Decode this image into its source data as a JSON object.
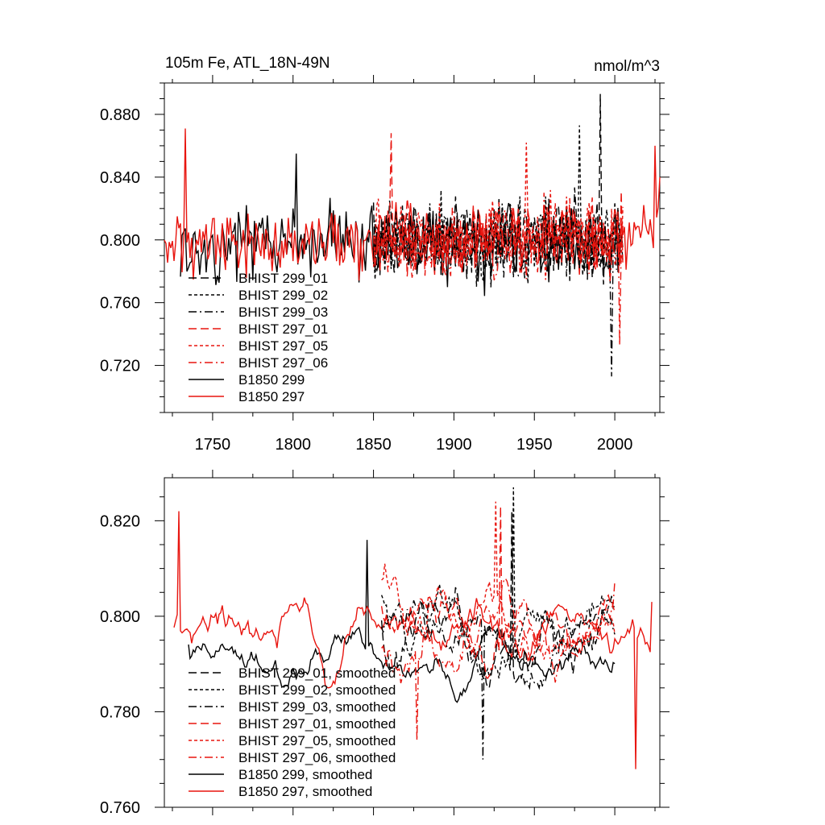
{
  "chart_data": [
    {
      "type": "line",
      "title": "105m Fe, ATL_18N-49N",
      "units": "nmol/m^3",
      "xlim": [
        1720,
        2028
      ],
      "ylim": [
        0.69,
        0.9
      ],
      "x_ticks": [
        "1750",
        "1800",
        "1850",
        "1900",
        "1950",
        "2000"
      ],
      "y_ticks": [
        "0.720",
        "0.760",
        "0.800",
        "0.840",
        "0.880"
      ],
      "grid": false,
      "legend_position": "lower-left",
      "series": [
        {
          "name": "BHIST 299_01",
          "color": "#000000",
          "dash": "long-dash",
          "x_range": [
            1850,
            2005
          ],
          "mean": 0.8,
          "amplitude": 0.04,
          "seed": 11,
          "peak": [
            1991,
            0.893
          ]
        },
        {
          "name": "BHIST 299_02",
          "color": "#000000",
          "dash": "short-dash",
          "x_range": [
            1850,
            2005
          ],
          "mean": 0.802,
          "amplitude": 0.038,
          "seed": 12,
          "peak": [
            1978,
            0.873
          ]
        },
        {
          "name": "BHIST 299_03",
          "color": "#000000",
          "dash": "dash-dot",
          "x_range": [
            1850,
            2005
          ],
          "mean": 0.798,
          "amplitude": 0.038,
          "seed": 13,
          "peak": [
            1998,
            0.713
          ]
        },
        {
          "name": "BHIST 297_01",
          "color": "#e8150f",
          "dash": "long-dash",
          "x_range": [
            1850,
            2005
          ],
          "mean": 0.8,
          "amplitude": 0.035,
          "seed": 21,
          "peak": [
            1861,
            0.868
          ]
        },
        {
          "name": "BHIST 297_05",
          "color": "#e8150f",
          "dash": "short-dash",
          "x_range": [
            1850,
            2005
          ],
          "mean": 0.803,
          "amplitude": 0.035,
          "seed": 22,
          "peak": [
            1945,
            0.862
          ]
        },
        {
          "name": "BHIST 297_06",
          "color": "#e8150f",
          "dash": "dash-dot",
          "x_range": [
            1850,
            2005
          ],
          "mean": 0.799,
          "amplitude": 0.035,
          "seed": 23,
          "peak": [
            2003,
            0.733
          ]
        },
        {
          "name": "B1850 299",
          "color": "#000000",
          "dash": "solid",
          "x_range": [
            1730,
            2005
          ],
          "mean": 0.797,
          "amplitude": 0.035,
          "seed": 31,
          "peak": [
            1802,
            0.855
          ]
        },
        {
          "name": "B1850 297",
          "color": "#e8150f",
          "dash": "solid",
          "x_range": [
            1720,
            2028
          ],
          "mean": 0.8,
          "amplitude": 0.033,
          "seed": 32,
          "peak": [
            1733,
            0.871
          ],
          "end_values": [
            [
              2020,
              0.806
            ],
            [
              2025,
              0.86
            ],
            [
              2028,
              0.84
            ]
          ]
        }
      ]
    },
    {
      "type": "line",
      "title": "",
      "xlim": [
        1720,
        2028
      ],
      "ylim": [
        0.76,
        0.829
      ],
      "x_ticks": [],
      "y_ticks": [
        "0.760",
        "0.780",
        "0.800",
        "0.820"
      ],
      "grid": false,
      "legend_position": "lower-left",
      "series": [
        {
          "name": "BHIST 299_01, smoothed",
          "color": "#000000",
          "dash": "long-dash",
          "x_range": [
            1855,
            2000
          ],
          "mean": 0.797,
          "amplitude": 0.012,
          "seed": 41,
          "peak": [
            1936,
            0.822
          ]
        },
        {
          "name": "BHIST 299_02, smoothed",
          "color": "#000000",
          "dash": "short-dash",
          "x_range": [
            1855,
            2000
          ],
          "mean": 0.799,
          "amplitude": 0.012,
          "seed": 42,
          "peak": [
            1937,
            0.827
          ]
        },
        {
          "name": "BHIST 299_03, smoothed",
          "color": "#000000",
          "dash": "dash-dot",
          "x_range": [
            1855,
            2000
          ],
          "mean": 0.797,
          "amplitude": 0.012,
          "seed": 43,
          "peak": [
            1918,
            0.77
          ]
        },
        {
          "name": "BHIST 297_01, smoothed",
          "color": "#e8150f",
          "dash": "long-dash",
          "x_range": [
            1855,
            2000
          ],
          "mean": 0.798,
          "amplitude": 0.011,
          "seed": 51,
          "peak": [
            1929,
            0.823
          ]
        },
        {
          "name": "BHIST 297_05, smoothed",
          "color": "#e8150f",
          "dash": "short-dash",
          "x_range": [
            1855,
            2000
          ],
          "mean": 0.8,
          "amplitude": 0.011,
          "seed": 52,
          "peak": [
            1926,
            0.824
          ]
        },
        {
          "name": "BHIST 297_06, smoothed",
          "color": "#e8150f",
          "dash": "dash-dot",
          "x_range": [
            1855,
            2000
          ],
          "mean": 0.797,
          "amplitude": 0.011,
          "seed": 53,
          "peak": [
            1877,
            0.774
          ]
        },
        {
          "name": "B1850 299, smoothed",
          "color": "#000000",
          "dash": "solid",
          "x_range": [
            1735,
            2000
          ],
          "mean": 0.792,
          "amplitude": 0.01,
          "seed": 61,
          "peak": [
            1846,
            0.816
          ]
        },
        {
          "name": "B1850 297, smoothed",
          "color": "#e8150f",
          "dash": "solid",
          "x_range": [
            1726,
            2023
          ],
          "mean": 0.797,
          "amplitude": 0.012,
          "seed": 62,
          "peak": [
            1729,
            0.822
          ],
          "end_values": [
            [
              2013,
              0.768
            ],
            [
              2023,
              0.803
            ]
          ]
        }
      ]
    }
  ]
}
